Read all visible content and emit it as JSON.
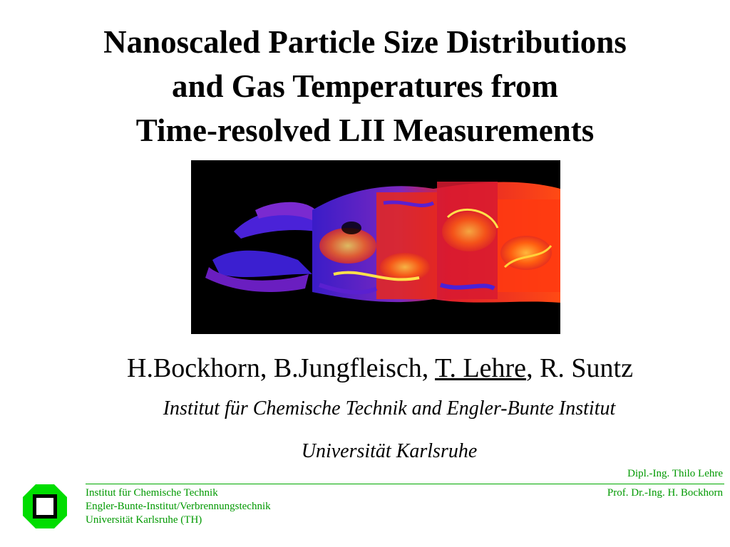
{
  "title": {
    "line1": "Nanoscaled Particle Size Distributions",
    "line2": "and Gas Temperatures from",
    "line3": "Time-resolved LII Measurements"
  },
  "authors": {
    "part1": "H.Bockhorn, B.Jungfleisch, ",
    "presenter": "T. Lehre",
    "part2": ", R. Suntz"
  },
  "affiliation": {
    "institute": "Institut für Chemische Technik and Engler-Bunte Institut",
    "university": "Universität Karlsruhe"
  },
  "footer": {
    "presenter_credit": "Dipl.-Ing. Thilo Lehre",
    "left_lines": [
      "Institut für Chemische Technik",
      "Engler-Bunte-Institut/Verbrennungstechnik",
      "Universität Karlsruhe (TH)"
    ],
    "right_line": "Prof. Dr.-Ing. H. Bockhorn",
    "rule_color": "#00aa00",
    "text_color": "#009900"
  },
  "logo": {
    "icon": "university-logo-icon",
    "color": "#00dd00"
  },
  "figure": {
    "icon": "flame-lii-image",
    "background": "#000000"
  }
}
